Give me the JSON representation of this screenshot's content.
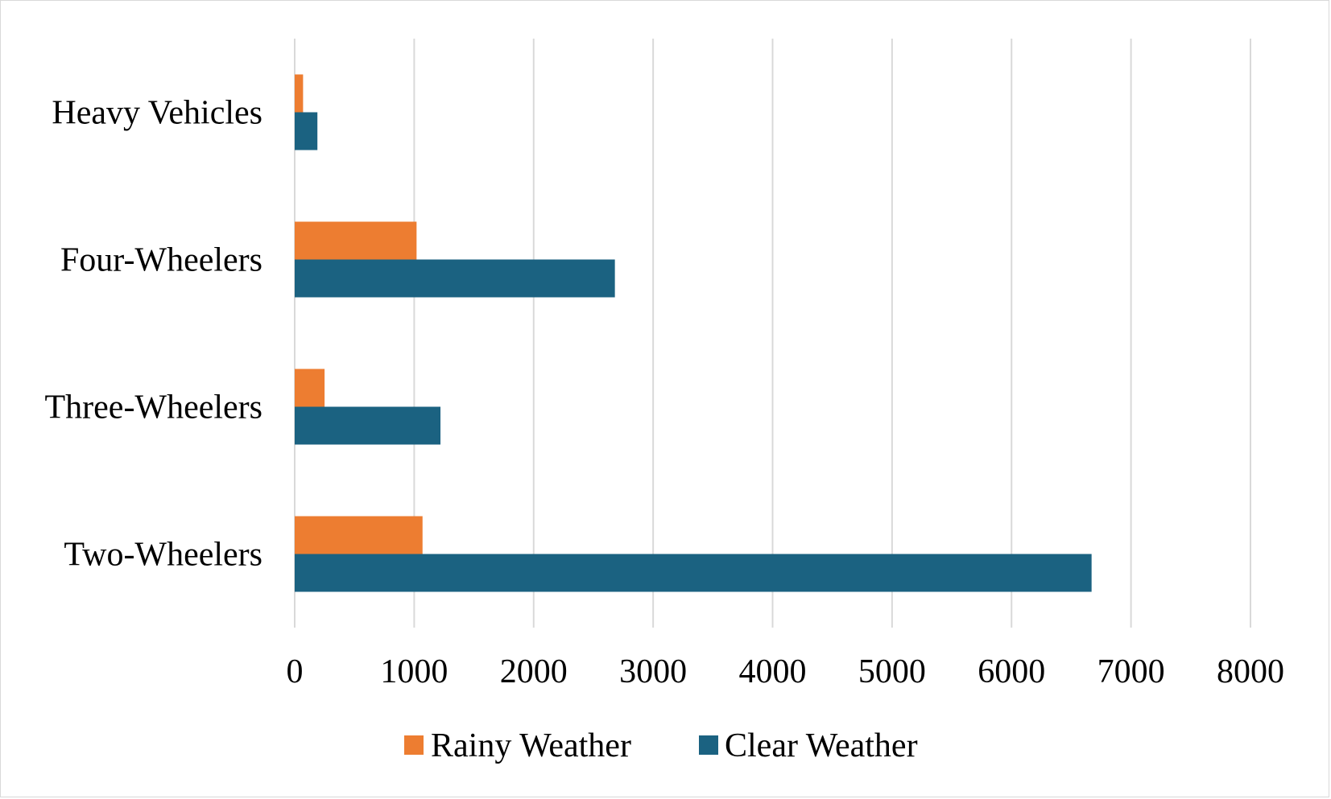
{
  "chart_data": {
    "type": "bar",
    "orientation": "horizontal",
    "categories": [
      "Two-Wheelers",
      "Three-Wheelers",
      "Four-Wheelers",
      "Heavy Vehicles"
    ],
    "series": [
      {
        "name": "Rainy Weather",
        "color": "#ED7D31",
        "values": [
          1070,
          250,
          1020,
          70
        ]
      },
      {
        "name": "Clear Weather",
        "color": "#1B6281",
        "values": [
          6670,
          1220,
          2680,
          190
        ]
      }
    ],
    "xlim": [
      0,
      8000
    ],
    "x_ticks": [
      "0",
      "1000",
      "2000",
      "3000",
      "4000",
      "5000",
      "6000",
      "7000",
      "8000"
    ],
    "grid": true,
    "legend_position": "bottom"
  }
}
